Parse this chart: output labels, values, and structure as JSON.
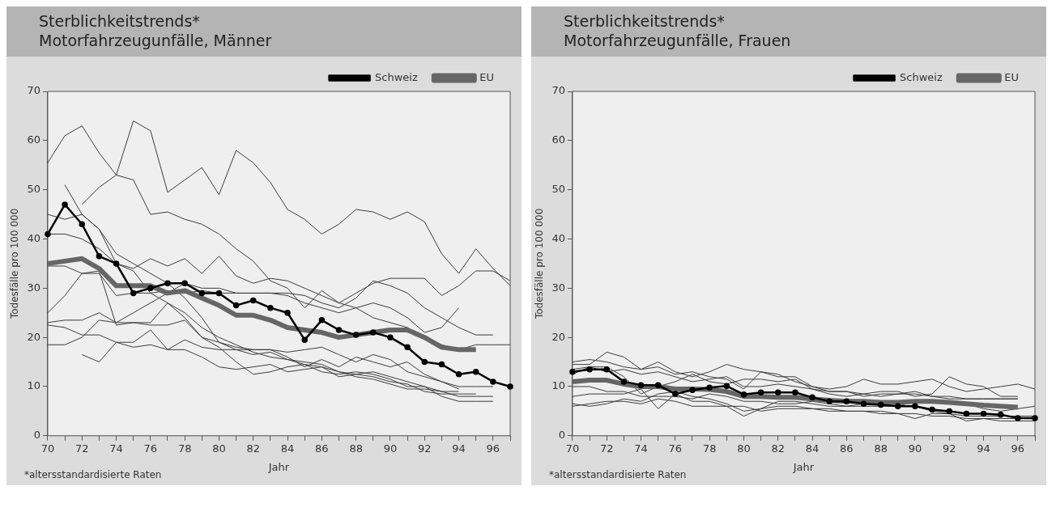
{
  "chart_data": [
    {
      "type": "line",
      "title": "Sterblichkeitstrends*",
      "subtitle": "Motorfahrzeugunfälle, Männer",
      "xlabel": "Jahr",
      "ylabel": "Todesfälle pro 100 000",
      "annotations": [
        "*altersstandardisierte Raten"
      ],
      "legend": "top right",
      "grid": false,
      "xlim": [
        70,
        97
      ],
      "ylim": [
        0,
        70
      ],
      "yticks": [
        0,
        10,
        20,
        30,
        40,
        50,
        60,
        70
      ],
      "xticks": [
        70,
        {
          "value": 71,
          "label": null
        },
        72,
        {
          "value": 73,
          "label": null
        },
        74,
        {
          "value": 75,
          "label": null
        },
        76,
        {
          "value": 77,
          "label": null
        },
        78,
        {
          "value": 79,
          "label": null
        },
        80,
        {
          "value": 81,
          "label": null
        },
        82,
        {
          "value": 83,
          "label": null
        },
        84,
        {
          "value": 85,
          "label": null
        },
        86,
        {
          "value": 87,
          "label": null
        },
        88,
        {
          "value": 89,
          "label": null
        },
        90,
        {
          "value": 91,
          "label": null
        },
        92,
        {
          "value": 93,
          "label": null
        },
        94,
        {
          "value": 95,
          "label": null
        },
        96,
        {
          "value": 97,
          "label": null
        }
      ],
      "x": [
        70,
        71,
        72,
        73,
        74,
        75,
        76,
        77,
        78,
        79,
        80,
        81,
        82,
        83,
        84,
        85,
        86,
        87,
        88,
        89,
        90,
        91,
        92,
        93,
        94,
        95,
        96,
        97
      ],
      "series": [
        {
          "name": "Schweiz",
          "color": "#000000",
          "marker": "circle",
          "values": [
            41,
            47,
            43,
            36.5,
            35,
            29,
            30,
            31,
            31,
            29,
            29,
            26.5,
            27.5,
            26,
            25,
            19.5,
            23.5,
            21.5,
            20.5,
            21,
            20,
            18,
            15,
            14.5,
            12.5,
            13,
            11,
            10
          ]
        },
        {
          "name": "EU",
          "color": "#666666",
          "values": [
            35,
            35.5,
            36,
            34,
            30.5,
            30.5,
            30.5,
            29,
            29.5,
            28,
            26.5,
            24.5,
            24.5,
            23.5,
            22,
            21.5,
            21,
            20,
            20.5,
            21,
            21.5,
            21.5,
            20,
            18,
            17.5,
            17.5,
            null,
            null
          ]
        },
        {
          "color": "#3c3c3c",
          "values": [
            55.5,
            61,
            63,
            57.5,
            53,
            64,
            62,
            49.5,
            52,
            54.5,
            49,
            58,
            55.5,
            51.5,
            46,
            44,
            41,
            43,
            46,
            45.5,
            44,
            45.5,
            43.5,
            37,
            33,
            38,
            34,
            30.5
          ]
        },
        {
          "color": "#3c3c3c",
          "values": [
            null,
            null,
            47,
            50.5,
            53,
            52,
            45,
            45.5,
            44,
            43,
            41,
            38,
            35.5,
            31.5,
            30,
            26,
            29.5,
            27,
            29,
            31,
            32,
            32,
            32,
            28.5,
            30.5,
            33.5,
            33.5,
            31.5
          ]
        },
        {
          "color": "#3c3c3c",
          "values": [
            null,
            51,
            45,
            42,
            37,
            35,
            33,
            31,
            28,
            24,
            19,
            17.5,
            16.5,
            17,
            15.5,
            15,
            14.5,
            13,
            12.5,
            13,
            12,
            11,
            10,
            9,
            8,
            8,
            8,
            null
          ]
        },
        {
          "color": "#3c3c3c",
          "values": [
            45,
            44,
            45,
            42,
            35,
            34,
            36,
            34.5,
            36,
            33,
            36.5,
            32.5,
            31,
            32,
            31.5,
            30,
            28.5,
            27,
            26,
            27,
            26,
            24,
            21,
            22,
            26,
            null,
            null,
            null
          ]
        },
        {
          "color": "#3c3c3c",
          "values": [
            25,
            28.5,
            33,
            33.5,
            22.5,
            23,
            22.5,
            22.5,
            23.5,
            20,
            19,
            18,
            17.5,
            17.5,
            17,
            17.5,
            18,
            16.5,
            15,
            16.5,
            15.5,
            13,
            12,
            11,
            10,
            10,
            10,
            null
          ]
        },
        {
          "color": "#3c3c3c",
          "values": [
            23,
            23.5,
            23.5,
            25,
            23,
            23,
            23,
            27,
            24,
            20,
            18,
            15,
            12.5,
            13,
            14,
            14.5,
            13,
            12.5,
            13,
            12.5,
            11.5,
            10,
            10,
            8,
            7,
            7,
            7,
            null
          ]
        },
        {
          "color": "#3c3c3c",
          "values": [
            18.5,
            18.5,
            20,
            23.5,
            23,
            25,
            27,
            29,
            31,
            30,
            30,
            29,
            29,
            29,
            28.5,
            27,
            26,
            25,
            26,
            24,
            23,
            22,
            20,
            18.5,
            17.5,
            18.5,
            18.5,
            18.5
          ]
        },
        {
          "color": "#3c3c3c",
          "values": [
            34.5,
            34.5,
            33,
            33,
            28.5,
            29,
            29,
            29.5,
            29,
            29.5,
            29,
            29,
            29,
            29,
            29,
            28.5,
            27,
            26,
            28,
            31.5,
            30.5,
            29,
            26,
            24,
            22,
            20.5,
            20.5,
            null
          ]
        },
        {
          "color": "#3c3c3c",
          "values": [
            null,
            null,
            16.5,
            15,
            19,
            19,
            21.5,
            17.5,
            19.5,
            18,
            17.5,
            17.5,
            17.5,
            17.5,
            16,
            14,
            15.5,
            14,
            16,
            15,
            14,
            15,
            12.5,
            11,
            9.5,
            null,
            null,
            null
          ]
        },
        {
          "color": "#3c3c3c",
          "values": [
            22.5,
            22,
            20.5,
            20.5,
            19,
            18,
            18.5,
            17.5,
            17.5,
            16,
            14,
            13.5,
            14,
            14.5,
            13,
            13.5,
            14,
            12,
            12.5,
            12,
            11,
            10.5,
            9,
            8.5,
            8.5,
            8.5,
            null,
            null
          ]
        },
        {
          "color": "#3c3c3c",
          "values": [
            41,
            41,
            40,
            38,
            35,
            33.5,
            29,
            27,
            25,
            22,
            20,
            18.5,
            17,
            16,
            15.5,
            14.5,
            14,
            13,
            12,
            11.5,
            10.5,
            9.5,
            9.5,
            9,
            9,
            null,
            null,
            null
          ]
        }
      ]
    },
    {
      "type": "line",
      "title": "Sterblichkeitstrends*",
      "subtitle": "Motorfahrzeugunfälle, Frauen",
      "xlabel": "Jahr",
      "ylabel": "Todesfälle pro 100 000",
      "annotations": [
        "*altersstandardisierte Raten"
      ],
      "legend": "top right",
      "grid": false,
      "xlim": [
        70,
        97
      ],
      "ylim": [
        0,
        70
      ],
      "yticks": [
        0,
        10,
        20,
        30,
        40,
        50,
        60,
        70
      ],
      "xticks": [
        70,
        {
          "value": 71,
          "label": null
        },
        72,
        {
          "value": 73,
          "label": null
        },
        74,
        {
          "value": 75,
          "label": null
        },
        76,
        {
          "value": 77,
          "label": null
        },
        78,
        {
          "value": 79,
          "label": null
        },
        80,
        {
          "value": 81,
          "label": null
        },
        82,
        {
          "value": 83,
          "label": null
        },
        84,
        {
          "value": 85,
          "label": null
        },
        86,
        {
          "value": 87,
          "label": null
        },
        88,
        {
          "value": 89,
          "label": null
        },
        90,
        {
          "value": 91,
          "label": null
        },
        92,
        {
          "value": 93,
          "label": null
        },
        94,
        {
          "value": 95,
          "label": null
        },
        96,
        {
          "value": 97,
          "label": null
        }
      ],
      "x": [
        70,
        71,
        72,
        73,
        74,
        75,
        76,
        77,
        78,
        79,
        80,
        81,
        82,
        83,
        84,
        85,
        86,
        87,
        88,
        89,
        90,
        91,
        92,
        93,
        94,
        95,
        96,
        97
      ],
      "series": [
        {
          "name": "Schweiz",
          "color": "#000000",
          "marker": "circle",
          "values": [
            13,
            13.5,
            13.5,
            11,
            10.3,
            10.3,
            8.5,
            9.3,
            9.8,
            10.1,
            8.4,
            8.8,
            8.8,
            8.8,
            7.8,
            7,
            7,
            6.5,
            6.3,
            6,
            6,
            5.3,
            5,
            4.5,
            4.5,
            4.3,
            3.6,
            3.6
          ]
        },
        {
          "name": "EU",
          "color": "#666666",
          "values": [
            11,
            11.3,
            11.3,
            10.5,
            10,
            10,
            9.5,
            9.5,
            9.4,
            9,
            8,
            8,
            7.8,
            7.8,
            7.5,
            7.2,
            7,
            7,
            6.8,
            6.8,
            7,
            7,
            6.8,
            6.5,
            6.2,
            6,
            5.8,
            null
          ]
        },
        {
          "color": "#3c3c3c",
          "values": [
            15,
            15.5,
            15,
            14,
            13.5,
            15,
            13,
            12,
            13,
            14.5,
            13.5,
            13,
            12,
            12,
            10,
            9.5,
            10,
            11.5,
            10.5,
            10.5,
            11,
            11.5,
            10,
            9,
            9.5,
            10,
            10.5,
            9.5
          ]
        },
        {
          "color": "#3c3c3c",
          "values": [
            14.5,
            14.5,
            17,
            16,
            13.5,
            14,
            12.5,
            13,
            12,
            11.5,
            9.5,
            13,
            12.5,
            11,
            10,
            9,
            9,
            8.5,
            9,
            9,
            8,
            8.5,
            12,
            10.5,
            10,
            8,
            8,
            null
          ]
        },
        {
          "color": "#3c3c3c",
          "values": [
            6.5,
            6,
            6.5,
            7.5,
            7,
            8.5,
            9,
            8,
            7.5,
            6.5,
            5,
            5.5,
            6,
            6,
            5.5,
            5.5,
            5,
            5,
            4.5,
            4.5,
            3.5,
            4.5,
            4.5,
            3,
            3.5,
            3,
            3,
            3
          ]
        },
        {
          "color": "#3c3c3c",
          "values": [
            8,
            8.5,
            8.5,
            8.5,
            9.5,
            5.5,
            8.5,
            7,
            7,
            6,
            4,
            5.5,
            7,
            7,
            6.5,
            6,
            6,
            6.5,
            6.5,
            6,
            6,
            5,
            4.5,
            4,
            4,
            4,
            4,
            4
          ]
        },
        {
          "color": "#3c3c3c",
          "values": [
            12.5,
            14,
            14,
            12,
            8.5,
            10,
            11,
            12.5,
            11,
            10.5,
            11.5,
            11.5,
            11,
            11.5,
            9.5,
            8.5,
            8,
            8.5,
            8,
            8.5,
            9,
            8,
            7.5,
            7.5,
            7.5,
            7.5,
            7.5,
            null
          ]
        },
        {
          "color": "#3c3c3c",
          "values": [
            6,
            6.5,
            7,
            7,
            6.5,
            7.5,
            7,
            6,
            6,
            6,
            6,
            5,
            5.5,
            5.5,
            5.5,
            5,
            5,
            5,
            5,
            4.5,
            4.5,
            4,
            4,
            3.5,
            3.5,
            3.5,
            3.5,
            3.5
          ]
        },
        {
          "color": "#3c3c3c",
          "values": [
            10,
            10,
            9,
            9,
            8,
            8,
            8,
            7.5,
            8.5,
            8,
            7,
            7,
            6.5,
            6.5,
            7,
            6.5,
            6,
            6,
            6,
            6,
            7,
            7,
            7,
            6.5,
            5.5,
            5,
            5.5,
            6
          ]
        },
        {
          "color": "#3c3c3c",
          "values": [
            13.5,
            14,
            13,
            13.5,
            12.5,
            13,
            12,
            11,
            11.5,
            12,
            10,
            10,
            10.5,
            10,
            9.5,
            9,
            9,
            8,
            8.5,
            8.5,
            8.5,
            8,
            8,
            7.5,
            7.5,
            7.5,
            7.5,
            null
          ]
        }
      ]
    }
  ]
}
